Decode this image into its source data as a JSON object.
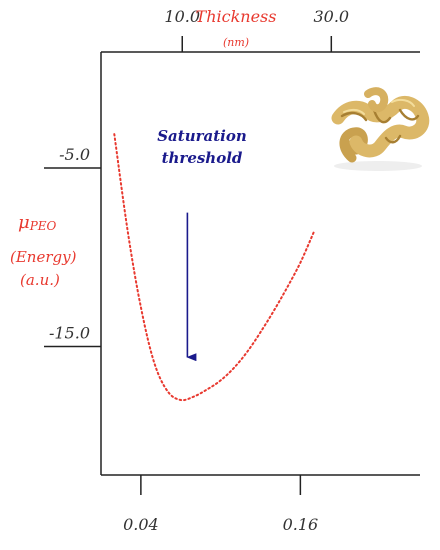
{
  "colors": {
    "curve": "#e8392f",
    "annotation": "#1a1a8c",
    "axis": "#222222"
  },
  "chart_data": {
    "type": "line",
    "title": "",
    "series": [
      {
        "x": [
          0.02,
          0.03,
          0.04,
          0.05,
          0.06,
          0.07,
          0.08,
          0.09,
          0.1,
          0.11,
          0.12,
          0.13,
          0.14,
          0.15,
          0.16,
          0.17
        ],
        "y": [
          -3.1,
          -8.5,
          -12.8,
          -15.9,
          -17.5,
          -18.0,
          -17.8,
          -17.4,
          -16.9,
          -16.2,
          -15.3,
          -14.2,
          -13.0,
          -11.7,
          -10.3,
          -8.6
        ]
      }
    ],
    "x_bottom": {
      "ticks": [
        0.04,
        0.16
      ],
      "tick_labels": [
        "0.04",
        "0.16"
      ]
    },
    "x_top": {
      "label": "Thickness",
      "unit": "(nm)",
      "ticks": [
        10.0,
        30.0
      ],
      "tick_labels": [
        "10.0",
        "30.0"
      ]
    },
    "y_left": {
      "label_symbol": "μ",
      "label_subscript": "PEO",
      "label_line2": "(Energy)",
      "label_line3": "(a.u.)",
      "ticks": [
        -5.0,
        -15.0
      ],
      "tick_labels": [
        "-5.0",
        "-15.0"
      ]
    },
    "annotations": [
      {
        "text_line1": "Saturation",
        "text_line2": "threshold",
        "arrow_x": 0.075,
        "arrow_from_y": -7.5,
        "arrow_to_y": -15.6
      }
    ],
    "xlim": [
      0.01,
      0.25
    ],
    "ylim": [
      -22.2,
      1.5
    ],
    "top_xlim": [
      -0.9,
      41.9
    ],
    "grid": false,
    "legend": "none",
    "decoration": "fusilli-pasta-image"
  }
}
